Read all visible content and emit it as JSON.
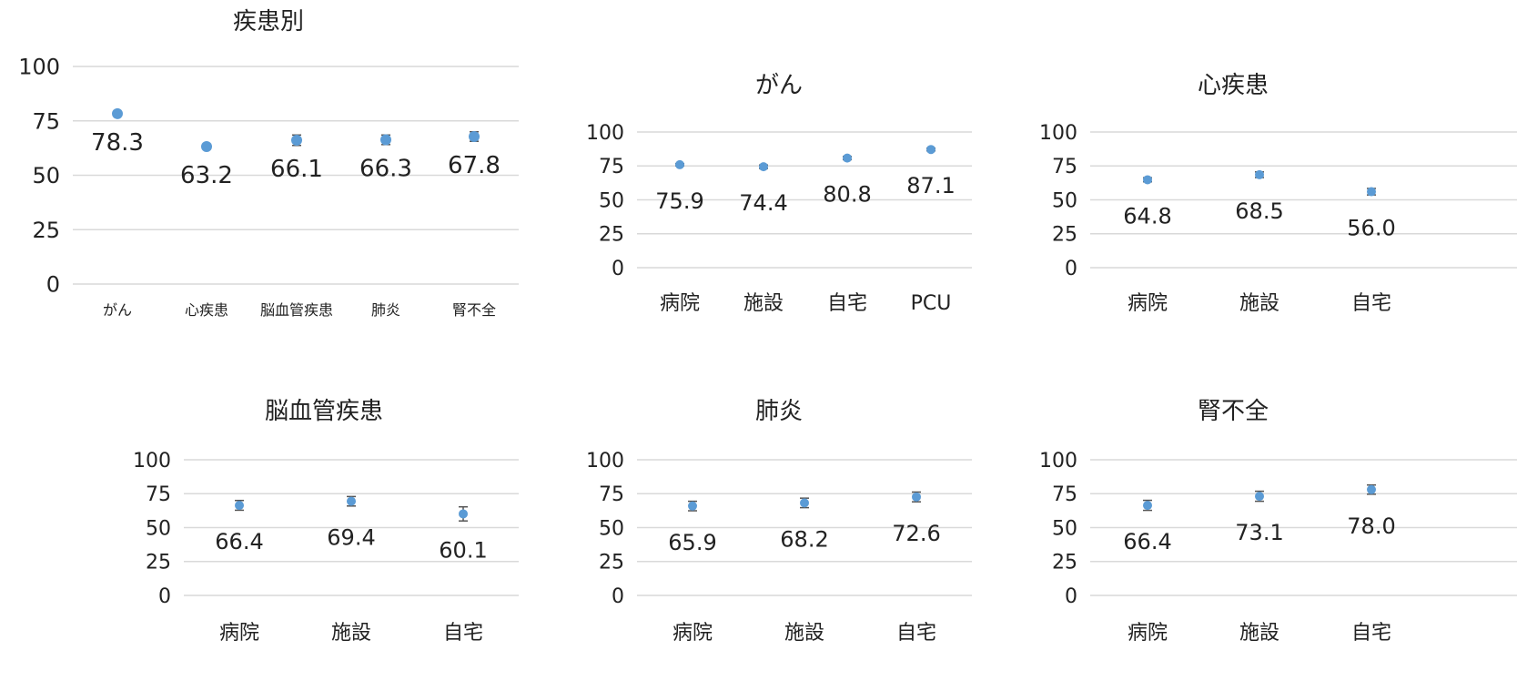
{
  "colors": {
    "marker": "#5b9bd5",
    "grid": "#d9d9d9",
    "errorbar": "#555555"
  },
  "chart_data": [
    {
      "type": "scatter",
      "title": "疾患別",
      "categories": [
        "がん",
        "心疾患",
        "脳血管疾患",
        "肺炎",
        "腎不全"
      ],
      "values": [
        78.3,
        63.2,
        66.1,
        66.3,
        67.8
      ],
      "labels": [
        "78.3",
        "63.2",
        "66.1",
        "66.3",
        "67.8"
      ],
      "error": [
        0.7,
        1.1,
        2.4,
        2.2,
        2.2
      ],
      "yticks": [
        "0",
        "25",
        "50",
        "75",
        "100"
      ],
      "ylim": [
        0,
        100
      ],
      "grid": true,
      "legend": "none"
    },
    {
      "type": "scatter",
      "title": "がん",
      "categories": [
        "病院",
        "施設",
        "自宅",
        "PCU"
      ],
      "values": [
        75.9,
        74.4,
        80.8,
        87.1
      ],
      "labels": [
        "75.9",
        "74.4",
        "80.8",
        "87.1"
      ],
      "error": [
        0.8,
        1.3,
        1.2,
        1.0
      ],
      "yticks": [
        "0",
        "25",
        "50",
        "75",
        "100"
      ],
      "ylim": [
        0,
        100
      ],
      "grid": true,
      "legend": "none"
    },
    {
      "type": "scatter",
      "title": "心疾患",
      "categories": [
        "病院",
        "施設",
        "自宅"
      ],
      "values": [
        64.8,
        68.5,
        56.0
      ],
      "labels": [
        "64.8",
        "68.5",
        "56.0"
      ],
      "error": [
        1.5,
        2.1,
        2.4
      ],
      "yticks": [
        "0",
        "25",
        "50",
        "75",
        "100"
      ],
      "ylim": [
        0,
        100
      ],
      "grid": true,
      "legend": "none"
    },
    {
      "type": "scatter",
      "title": "脳血管疾患",
      "categories": [
        "病院",
        "施設",
        "自宅"
      ],
      "values": [
        66.4,
        69.4,
        60.1
      ],
      "labels": [
        "66.4",
        "69.4",
        "60.1"
      ],
      "error": [
        3.6,
        3.5,
        5.2
      ],
      "yticks": [
        "0",
        "25",
        "50",
        "75",
        "100"
      ],
      "ylim": [
        0,
        100
      ],
      "grid": true,
      "legend": "none"
    },
    {
      "type": "scatter",
      "title": "肺炎",
      "categories": [
        "病院",
        "施設",
        "自宅"
      ],
      "values": [
        65.9,
        68.2,
        72.6
      ],
      "labels": [
        "65.9",
        "68.2",
        "72.6"
      ],
      "error": [
        3.5,
        3.5,
        3.6
      ],
      "yticks": [
        "0",
        "25",
        "50",
        "75",
        "100"
      ],
      "ylim": [
        0,
        100
      ],
      "grid": true,
      "legend": "none"
    },
    {
      "type": "scatter",
      "title": "腎不全",
      "categories": [
        "病院",
        "施設",
        "自宅"
      ],
      "values": [
        66.4,
        73.1,
        78.0
      ],
      "labels": [
        "66.4",
        "73.1",
        "78.0"
      ],
      "error": [
        3.7,
        3.7,
        3.4
      ],
      "yticks": [
        "0",
        "25",
        "50",
        "75",
        "100"
      ],
      "ylim": [
        0,
        100
      ],
      "grid": true,
      "legend": "none"
    }
  ]
}
